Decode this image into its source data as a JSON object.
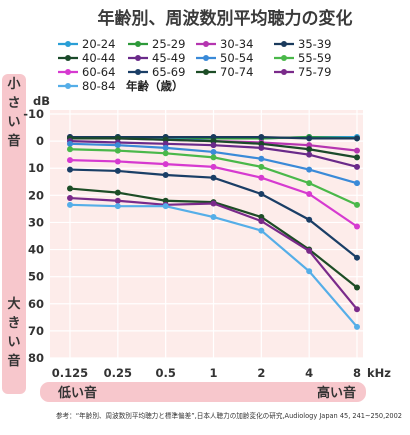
{
  "chart_data": {
    "type": "line",
    "title": "年齢別、周波数別平均聴力の変化",
    "x": [
      "0.125",
      "0.25",
      "0.5",
      "1",
      "2",
      "4",
      "8"
    ],
    "x_unit": "kHz",
    "y_unit": "dB",
    "legend_unit": "年齢（歳）",
    "ylim": [
      -10,
      80
    ],
    "y_ticks": [
      "-10",
      "0",
      "10",
      "20",
      "30",
      "40",
      "50",
      "60",
      "70",
      "80"
    ],
    "y_inverted": true,
    "grid": true,
    "left_band_top": "小さい音",
    "left_band_bottom": "大きい音",
    "bottom_band_left": "低い音",
    "bottom_band_right": "高い音",
    "source_note": "参考：“年齢別、周波数別平均聴力と標準偏差”,日本人聴力の加齢変化の研究,Audiology Japan 45, 241~250,2002",
    "series": [
      {
        "name": "20-24",
        "color": "#2a9fd6",
        "values": [
          -1.5,
          -1.5,
          -1.0,
          -1.0,
          -1.0,
          -1.5,
          -1.5
        ]
      },
      {
        "name": "25-29",
        "color": "#2e9a3a",
        "values": [
          -1.0,
          -1.5,
          -1.5,
          -1.0,
          -1.0,
          -1.5,
          -1.0
        ]
      },
      {
        "name": "30-34",
        "color": "#b535b0",
        "values": [
          -1.5,
          -1.0,
          -0.5,
          0.0,
          0.5,
          1.5,
          3.5
        ]
      },
      {
        "name": "35-39",
        "color": "#1a3a5c",
        "values": [
          -1.5,
          -1.5,
          -1.5,
          -1.5,
          -1.5,
          -1.0,
          -1.0
        ]
      },
      {
        "name": "40-44",
        "color": "#1a4a2a",
        "values": [
          -1.0,
          -1.0,
          -0.5,
          0.0,
          1.0,
          3.0,
          6.0
        ]
      },
      {
        "name": "45-49",
        "color": "#6a2a8a",
        "values": [
          0.0,
          0.5,
          1.0,
          1.5,
          2.5,
          5.0,
          9.5
        ]
      },
      {
        "name": "50-54",
        "color": "#3a8ad8",
        "values": [
          1.0,
          1.5,
          2.5,
          4.0,
          6.5,
          10.5,
          15.5
        ]
      },
      {
        "name": "55-59",
        "color": "#4ab84a",
        "values": [
          3.0,
          3.5,
          4.5,
          6.0,
          9.5,
          15.5,
          23.5
        ]
      },
      {
        "name": "60-64",
        "color": "#d63ad0",
        "values": [
          7.0,
          7.5,
          8.5,
          9.5,
          13.5,
          19.5,
          31.5
        ]
      },
      {
        "name": "65-69",
        "color": "#1a3e66",
        "values": [
          10.5,
          11.0,
          12.5,
          13.5,
          19.5,
          29.0,
          43.0
        ]
      },
      {
        "name": "70-74",
        "color": "#1d4d26",
        "values": [
          17.5,
          19.0,
          22.0,
          22.5,
          28.0,
          40.0,
          54.0
        ]
      },
      {
        "name": "75-79",
        "color": "#7a2a8a",
        "values": [
          21.0,
          22.0,
          23.5,
          23.0,
          29.5,
          40.5,
          62.0
        ]
      },
      {
        "name": "80-84",
        "color": "#55aee8",
        "values": [
          23.5,
          24.0,
          24.0,
          28.0,
          33.0,
          48.0,
          68.5
        ]
      }
    ]
  }
}
